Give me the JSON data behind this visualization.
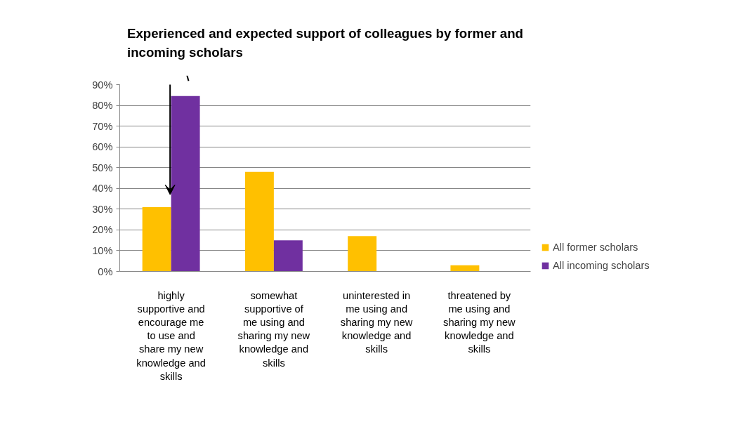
{
  "chart_data": {
    "type": "bar",
    "title": "Experienced and expected support of colleagues by former and incoming scholars",
    "categories": [
      "highly\nsupportive and\nencourage me\nto use and\nshare my new\nknowledge and\nskills",
      "somewhat\nsupportive of\nme using and\nsharing my new\nknowledge and\nskills",
      "uninterested in\nme using and\nsharing my new\nknowledge and\nskills",
      "threatened by\nme using and\nsharing my new\nknowledge and\nskills"
    ],
    "series": [
      {
        "name": "All former scholars",
        "color": "#ffc000",
        "values": [
          31,
          48,
          17,
          3
        ]
      },
      {
        "name": "All incoming scholars",
        "color": "#7030a0",
        "values": [
          84.5,
          15,
          0,
          0
        ]
      }
    ],
    "ylim": [
      0,
      90
    ],
    "yticks": [
      {
        "value": 0,
        "label": "0%"
      },
      {
        "value": 10,
        "label": "10%"
      },
      {
        "value": 20,
        "label": "20%"
      },
      {
        "value": 30,
        "label": "30%"
      },
      {
        "value": 40,
        "label": "40%"
      },
      {
        "value": 50,
        "label": "50%"
      },
      {
        "value": 60,
        "label": "60%"
      },
      {
        "value": 70,
        "label": "70%"
      },
      {
        "value": 80,
        "label": "80%"
      },
      {
        "value": 90,
        "label": "90%"
      }
    ],
    "grid": "y",
    "legend": "right"
  }
}
